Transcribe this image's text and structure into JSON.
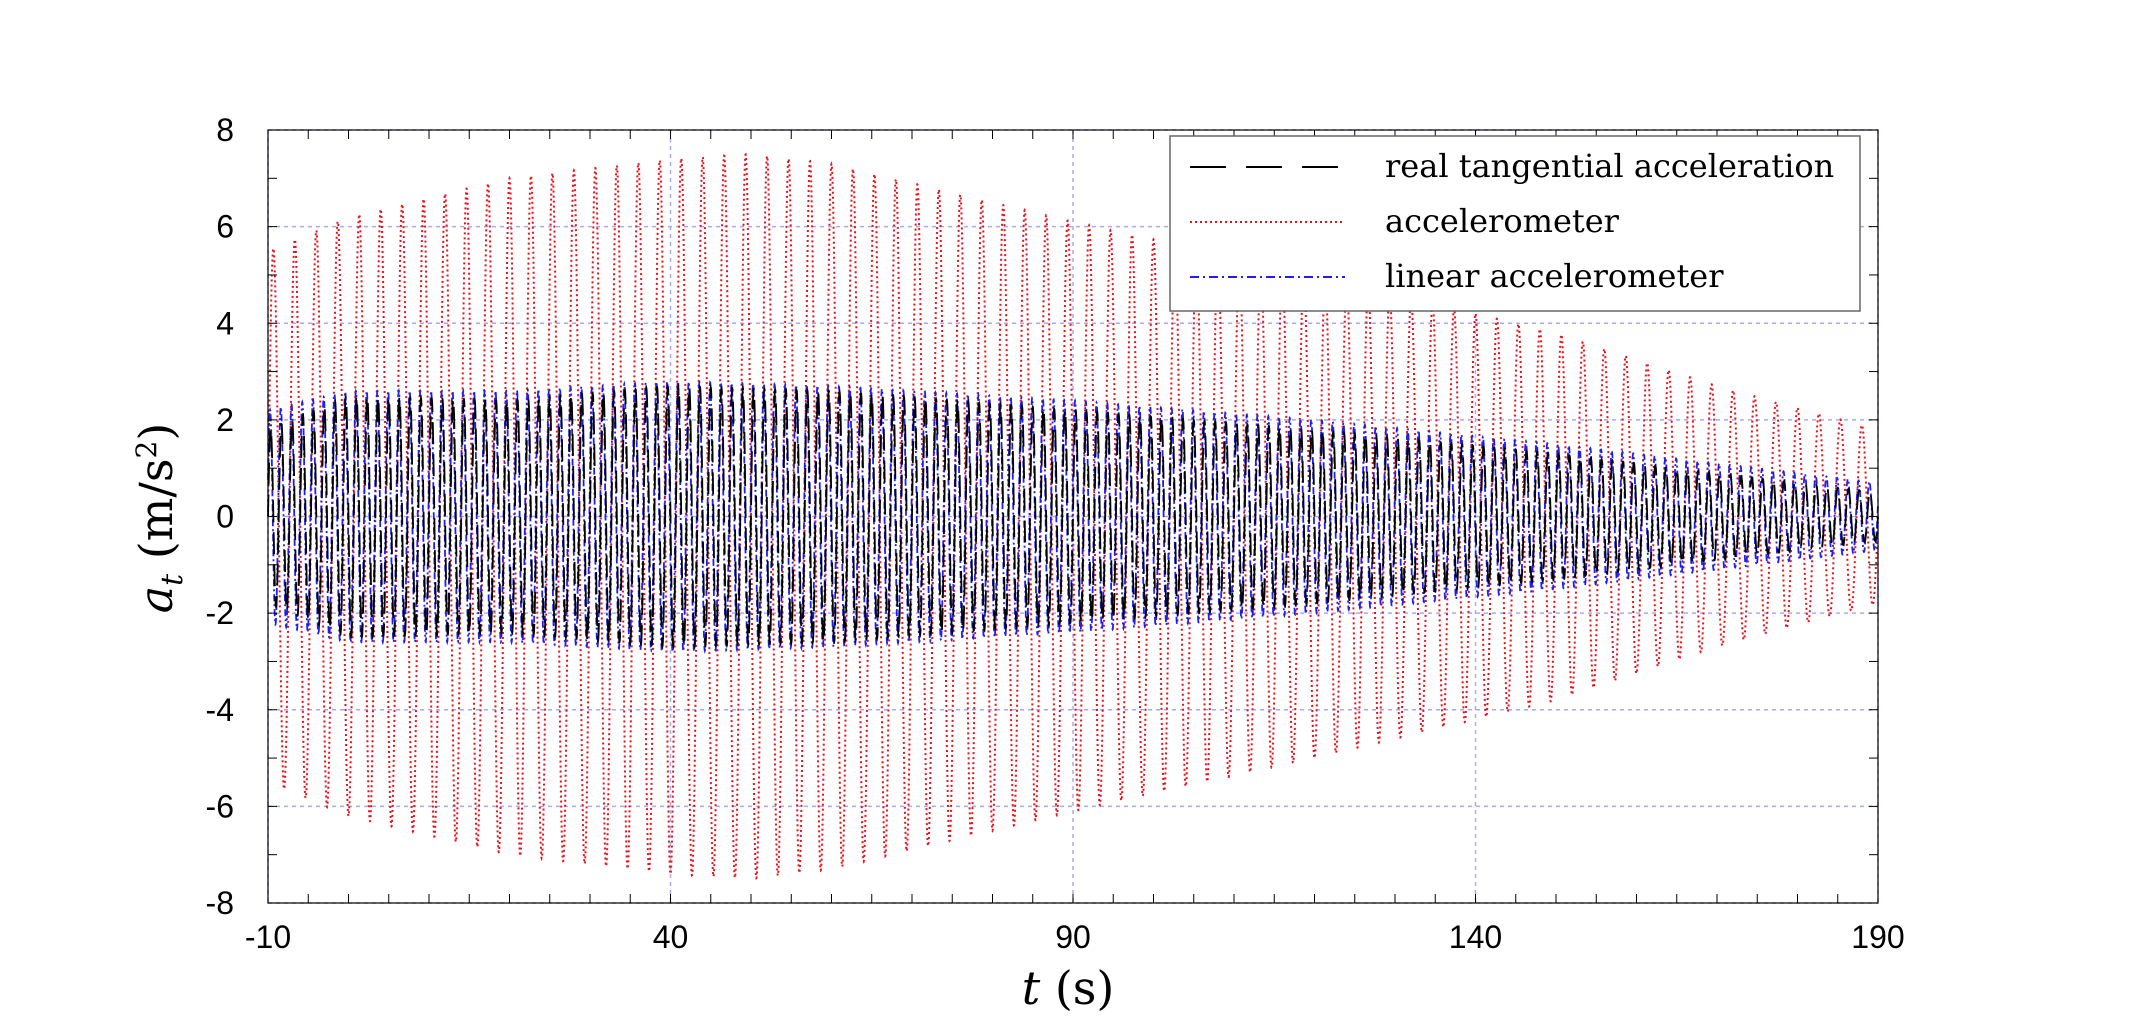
{
  "chart_data": {
    "type": "line",
    "title": "",
    "xlabel": {
      "var": "t",
      "unit": "(s)"
    },
    "ylabel": {
      "var": "a",
      "sub": "t",
      "unit_open": "(m/s",
      "unit_sup": "2",
      "unit_close": ")"
    },
    "xlim": [
      -10,
      190
    ],
    "ylim": [
      -8,
      8
    ],
    "xticks": [
      -10,
      40,
      90,
      140,
      190
    ],
    "yticks": [
      -8,
      -6,
      -4,
      -2,
      0,
      2,
      4,
      6,
      8
    ],
    "grid": true,
    "legend_position": "top-right",
    "series": [
      {
        "name": "real tangential acceleration",
        "color": "#000000",
        "style": "dashed",
        "frequency_cycles_per_s": 0.75,
        "envelope": {
          "t": [
            -10,
            0,
            20,
            40,
            60,
            90,
            120,
            150,
            170,
            190
          ],
          "amp": [
            1.8,
            2.5,
            2.4,
            2.7,
            2.6,
            2.2,
            1.8,
            1.3,
            0.9,
            0.5
          ]
        }
      },
      {
        "name": "accelerometer",
        "color": "#e8111b",
        "style": "dotted",
        "frequency_cycles_per_s": 0.375,
        "envelope": {
          "t": [
            -10,
            0,
            20,
            40,
            50,
            60,
            90,
            120,
            150,
            170,
            190
          ],
          "amp": [
            5.5,
            6.2,
            7.0,
            7.4,
            7.5,
            7.3,
            6.1,
            5.0,
            3.8,
            2.7,
            1.8
          ]
        }
      },
      {
        "name": "linear accelerometer",
        "color": "#1f1fe8",
        "style": "dash-dot",
        "frequency_cycles_per_s": 0.75,
        "envelope": {
          "t": [
            -10,
            0,
            20,
            40,
            60,
            90,
            120,
            150,
            170,
            190
          ],
          "amp": [
            2.2,
            2.6,
            2.6,
            2.8,
            2.7,
            2.4,
            2.0,
            1.5,
            1.1,
            0.7
          ]
        }
      }
    ]
  }
}
